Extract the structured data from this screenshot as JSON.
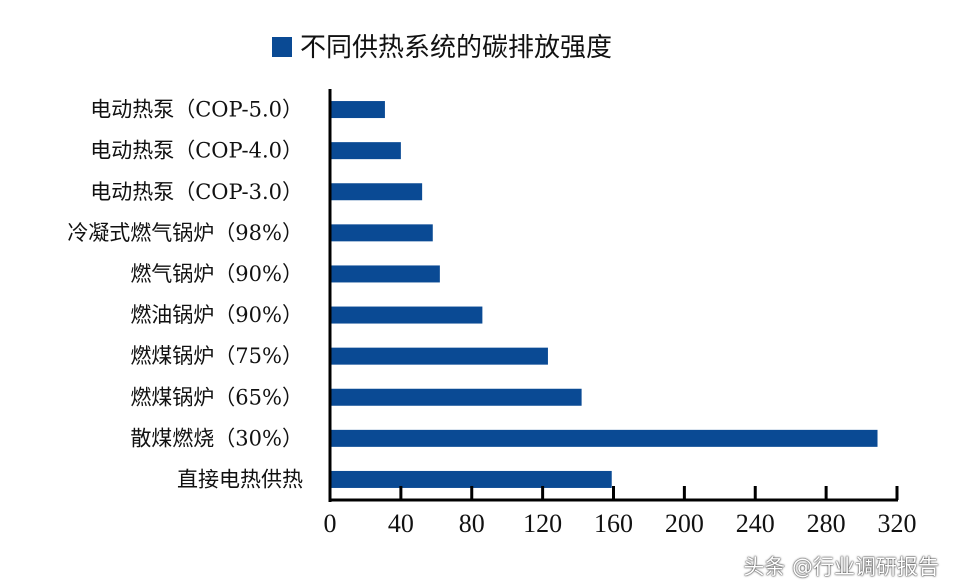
{
  "chart_data": {
    "type": "bar",
    "orientation": "horizontal",
    "legend": "不同供热系统的碳排放强度",
    "legend_placement": "top",
    "categories": [
      "电动热泵（COP-5.0）",
      "电动热泵（COP-4.0）",
      "电动热泵（COP-3.0）",
      "冷凝式燃气锅炉（98%）",
      "燃气锅炉（90%）",
      "燃油锅炉（90%）",
      "燃煤锅炉（75%）",
      "燃煤锅炉（65%）",
      "散煤燃烧（30%）",
      "直接电热供热"
    ],
    "values": [
      31,
      40,
      52,
      58,
      62,
      86,
      123,
      142,
      309,
      159
    ],
    "xlim": [
      0,
      320
    ],
    "xticks": [
      "0",
      "40",
      "80",
      "120",
      "160",
      "200",
      "240",
      "280",
      "320"
    ],
    "grid": false,
    "bar_color": "#0a4a94"
  },
  "watermark": "头条 @行业调研报告"
}
